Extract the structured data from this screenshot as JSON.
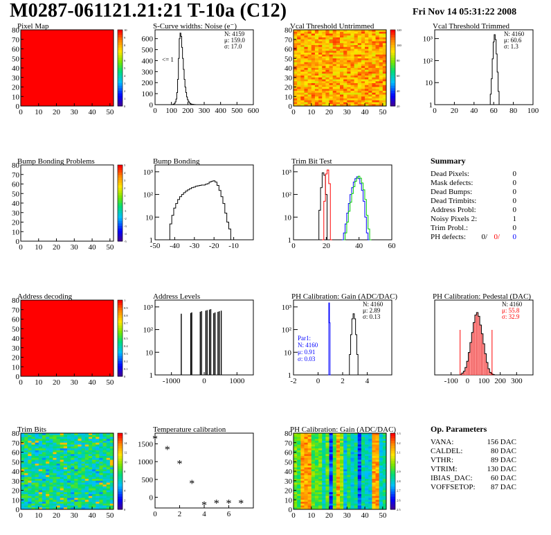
{
  "title": "M0287-061121.21:21 T-10a (C12)",
  "date": "Fri Nov 14 05:31:22 2008",
  "chart_data": [
    {
      "type": "heatmap",
      "title": "Pixel Map",
      "x_ticks": [
        "0",
        "10",
        "20",
        "30",
        "40",
        "50"
      ],
      "y_ticks": [
        "0",
        "10",
        "20",
        "30",
        "40",
        "50",
        "60",
        "70",
        "80"
      ],
      "xlim": [
        0,
        52
      ],
      "ylim": [
        0,
        80
      ],
      "fill": "uniform-max",
      "palette_labels": [
        "10",
        "9",
        "8",
        "7",
        "6",
        "5",
        "4",
        "3",
        "2",
        "1",
        "0"
      ]
    },
    {
      "type": "histogram",
      "title": "S-Curve widths: Noise (e⁻)",
      "xlim": [
        0,
        600
      ],
      "ylim": [
        0,
        680
      ],
      "x_ticks": [
        "0",
        "100",
        "200",
        "300",
        "400",
        "500",
        "600"
      ],
      "y_ticks": [
        "0",
        "100",
        "200",
        "300",
        "400",
        "500",
        "600"
      ],
      "log_y": false,
      "stats": [
        "N: 4159",
        "μ: 159.0",
        "σ: 17.0"
      ],
      "annotation": "<= 1",
      "x": [
        110,
        115,
        120,
        125,
        130,
        135,
        140,
        145,
        150,
        155,
        160,
        165,
        170,
        175,
        180,
        185,
        190,
        195,
        200,
        205,
        210,
        215,
        220,
        225,
        230,
        235,
        240,
        245,
        250
      ],
      "y": [
        2,
        5,
        12,
        25,
        50,
        110,
        230,
        420,
        600,
        650,
        620,
        520,
        420,
        320,
        230,
        160,
        110,
        70,
        45,
        30,
        18,
        10,
        6,
        4,
        3,
        2,
        1,
        1,
        0
      ]
    },
    {
      "type": "heatmap",
      "title": "Vcal Threshold Untrimmed",
      "x_ticks": [
        "0",
        "10",
        "20",
        "30",
        "40",
        "50"
      ],
      "y_ticks": [
        "0",
        "10",
        "20",
        "30",
        "40",
        "50",
        "60",
        "70",
        "80"
      ],
      "xlim": [
        0,
        52
      ],
      "ylim": [
        0,
        80
      ],
      "fill": "noisy-orange",
      "palette_labels": [
        "120",
        "100",
        "80",
        "60",
        "40",
        "20"
      ]
    },
    {
      "type": "histogram",
      "title": "Vcal Threshold Trimmed",
      "xlim": [
        0,
        100
      ],
      "ylim": [
        1,
        2500
      ],
      "log_y": true,
      "x_ticks": [
        "0",
        "20",
        "40",
        "60",
        "80",
        "100"
      ],
      "y_ticks": [
        "1",
        "10",
        "10²",
        "10³"
      ],
      "stats": [
        "N: 4160",
        "μ: 60.6",
        "σ: 1.3"
      ],
      "x": [
        56,
        57,
        58,
        59,
        60,
        61,
        62,
        63,
        64,
        65,
        66
      ],
      "y": [
        1,
        3,
        15,
        120,
        700,
        1500,
        900,
        200,
        30,
        4,
        1
      ]
    },
    {
      "type": "heatmap",
      "title": "Bump Bonding Problems",
      "x_ticks": [
        "0",
        "10",
        "20",
        "30",
        "40",
        "50"
      ],
      "y_ticks": [
        "0",
        "10",
        "20",
        "30",
        "40",
        "50",
        "60",
        "70",
        "80"
      ],
      "xlim": [
        0,
        52
      ],
      "ylim": [
        0,
        80
      ],
      "fill": "empty",
      "palette_labels": [
        "5",
        "4",
        "3",
        "2",
        "1",
        "0",
        "-1",
        "-2",
        "-3",
        "-4",
        "-5"
      ]
    },
    {
      "type": "histogram",
      "title": "Bump Bonding",
      "xlim": [
        -50,
        0
      ],
      "ylim": [
        1,
        2000
      ],
      "log_y": true,
      "x_ticks": [
        "-50",
        "-40",
        "-30",
        "-20",
        "-10"
      ],
      "y_ticks": [
        "1",
        "10",
        "10²",
        "10³"
      ],
      "x": [
        -43,
        -42,
        -41,
        -40,
        -39,
        -38,
        -37,
        -36,
        -35,
        -34,
        -33,
        -32,
        -31,
        -30,
        -29,
        -28,
        -27,
        -26,
        -25,
        -24,
        -23,
        -22,
        -21,
        -20,
        -19,
        -18,
        -17,
        -16,
        -15,
        -14,
        -13,
        -12,
        -11,
        -10,
        -9
      ],
      "y": [
        1,
        5,
        12,
        25,
        40,
        60,
        80,
        100,
        120,
        140,
        160,
        180,
        200,
        210,
        230,
        240,
        250,
        260,
        260,
        280,
        300,
        350,
        380,
        400,
        350,
        250,
        150,
        80,
        40,
        15,
        6,
        3,
        1,
        1,
        0
      ]
    },
    {
      "type": "histogram",
      "title": "Trim Bit Test",
      "xlim": [
        0,
        60
      ],
      "ylim": [
        1,
        2000
      ],
      "log_y": true,
      "x_ticks": [
        "0",
        "20",
        "40",
        "60"
      ],
      "y_ticks": [
        "1",
        "10",
        "10²",
        "10³"
      ],
      "series": [
        {
          "color": "#000000",
          "x": [
            15,
            16,
            17,
            18,
            19,
            20,
            21
          ],
          "y": [
            1,
            20,
            200,
            900,
            700,
            100,
            1
          ]
        },
        {
          "color": "#ff0000",
          "x": [
            18,
            19,
            20,
            21,
            22,
            23
          ],
          "y": [
            1,
            50,
            800,
            1200,
            300,
            1
          ]
        },
        {
          "color": "#0000ff",
          "x": [
            30,
            31,
            32,
            33,
            34,
            35,
            36,
            37,
            38,
            39,
            40,
            41,
            42,
            43,
            44,
            45,
            46
          ],
          "y": [
            1,
            2,
            5,
            15,
            40,
            100,
            200,
            350,
            500,
            600,
            500,
            300,
            150,
            50,
            10,
            2,
            1
          ]
        },
        {
          "color": "#00cc00",
          "x": [
            31,
            32,
            33,
            34,
            35,
            36,
            37,
            38,
            39,
            40,
            41,
            42,
            43,
            44,
            45,
            46,
            47
          ],
          "y": [
            1,
            2,
            6,
            18,
            45,
            110,
            220,
            380,
            520,
            640,
            520,
            320,
            160,
            60,
            12,
            3,
            1
          ]
        }
      ]
    },
    {
      "type": "table",
      "title": "Summary",
      "rows": [
        [
          "Dead Pixels:",
          "0"
        ],
        [
          "Mask defects:",
          "0"
        ],
        [
          "Dead Bumps:",
          "0"
        ],
        [
          "Dead Trimbits:",
          "0"
        ],
        [
          "Address Probl:",
          "0"
        ],
        [
          "Noisy Pixels 2:",
          "1"
        ],
        [
          "Trim Probl.:",
          "0"
        ]
      ],
      "ph_defects": {
        "label": "PH defects:",
        "values": [
          "0/",
          "0/",
          "0"
        ],
        "colors": [
          "#000000",
          "#ff0000",
          "#0000ff"
        ]
      }
    },
    {
      "type": "heatmap",
      "title": "Address decoding",
      "x_ticks": [
        "0",
        "10",
        "20",
        "30",
        "40",
        "50"
      ],
      "y_ticks": [
        "0",
        "10",
        "20",
        "30",
        "40",
        "50",
        "60",
        "70",
        "80"
      ],
      "xlim": [
        0,
        52
      ],
      "ylim": [
        0,
        80
      ],
      "fill": "uniform-max",
      "palette_labels": [
        "1",
        "0.9",
        "0.8",
        "0.7",
        "0.6",
        "0.5",
        "0.4",
        "0.3",
        "0.2",
        "0.1",
        "0"
      ]
    },
    {
      "type": "histogram",
      "title": "Address Levels",
      "xlim": [
        -1500,
        1500
      ],
      "ylim": [
        1,
        2000
      ],
      "log_y": true,
      "x_ticks": [
        "-1000",
        "0",
        "1000"
      ],
      "y_ticks": [
        "1",
        "10",
        "10²",
        "10³"
      ],
      "spikes": [
        -700,
        -410,
        -380,
        -120,
        -80,
        50,
        90,
        160,
        200,
        290,
        330,
        420,
        460,
        520
      ]
    },
    {
      "type": "histogram",
      "title": "PH Calibration: Gain (ADC/DAC)",
      "xlim": [
        -2,
        6
      ],
      "ylim": [
        1,
        2000
      ],
      "log_y": true,
      "x_ticks": [
        "-2",
        "0",
        "2",
        "4"
      ],
      "y_ticks": [
        "1",
        "10",
        "10²",
        "10³"
      ],
      "stats": [
        "N: 4160",
        "μ: 2.89",
        "σ: 0.13"
      ],
      "par1": [
        "Par1:",
        "N: 4160",
        "μ: 0.91",
        "σ: 0.03"
      ],
      "series": [
        {
          "color": "#000000",
          "x": [
            2.5,
            2.6,
            2.7,
            2.8,
            2.9,
            3.0,
            3.1,
            3.2,
            3.3
          ],
          "y": [
            1,
            8,
            60,
            300,
            500,
            300,
            60,
            8,
            1
          ]
        },
        {
          "color": "#0000ff",
          "x": [
            0.85,
            0.9,
            0.95,
            1.0
          ],
          "y": [
            1,
            1500,
            200,
            1
          ]
        }
      ]
    },
    {
      "type": "histogram",
      "title": "PH Calibration: Pedestal (DAC)",
      "xlim": [
        -200,
        400
      ],
      "ylim": [
        0,
        600
      ],
      "log_y": false,
      "x_ticks": [
        "-100",
        "0",
        "100",
        "200",
        "300"
      ],
      "stats": [
        "N: 4160",
        "μ: 55.8",
        "σ: 32.9"
      ],
      "stats_colors": [
        "#000000",
        "#ff0000",
        "#ff0000"
      ],
      "x": [
        -40,
        -30,
        -20,
        -10,
        0,
        10,
        20,
        30,
        40,
        50,
        60,
        70,
        80,
        90,
        100,
        110,
        120,
        130,
        140,
        150,
        160
      ],
      "y": [
        5,
        15,
        30,
        60,
        110,
        180,
        260,
        340,
        420,
        480,
        500,
        470,
        400,
        330,
        250,
        170,
        100,
        50,
        20,
        8,
        3
      ]
    },
    {
      "type": "heatmap",
      "title": "Trim Bits",
      "x_ticks": [
        "0",
        "10",
        "20",
        "30",
        "40",
        "50"
      ],
      "y_ticks": [
        "0",
        "10",
        "20",
        "30",
        "40",
        "50",
        "60",
        "70",
        "80"
      ],
      "xlim": [
        0,
        52
      ],
      "ylim": [
        0,
        80
      ],
      "fill": "noisy-green",
      "palette_labels": [
        "16",
        "14",
        "12",
        "10",
        "8",
        "6",
        "4",
        "2",
        "0"
      ]
    },
    {
      "type": "scatter",
      "title": "Temperature calibration",
      "xlim": [
        0,
        8
      ],
      "ylim": [
        -300,
        1800
      ],
      "x_ticks": [
        "0",
        "2",
        "4",
        "6"
      ],
      "y_ticks": [
        "0",
        "500",
        "1000",
        "1500"
      ],
      "x": [
        0,
        1,
        2,
        3,
        4,
        5,
        6,
        7
      ],
      "y": [
        1650,
        1350,
        950,
        400,
        -200,
        -150,
        -150,
        -150
      ]
    },
    {
      "type": "heatmap",
      "title": "PH Calibration: Gain (ADC/DAC)",
      "x_ticks": [
        "0",
        "10",
        "20",
        "30",
        "40",
        "50"
      ],
      "y_ticks": [
        "0",
        "10",
        "20",
        "30",
        "40",
        "50",
        "60",
        "70",
        "80"
      ],
      "xlim": [
        0,
        52
      ],
      "ylim": [
        0,
        80
      ],
      "fill": "noisy-columns",
      "palette_labels": [
        "3.3",
        "3.2",
        "3.1",
        "3",
        "2.9",
        "2.8",
        "2.7",
        "2.6",
        "2.5"
      ]
    },
    {
      "type": "table",
      "title": "Op. Parameters",
      "rows": [
        [
          "VANA:",
          "156 DAC"
        ],
        [
          "CALDEL:",
          "80 DAC"
        ],
        [
          "VTHR:",
          "89 DAC"
        ],
        [
          "VTRIM:",
          "130 DAC"
        ],
        [
          "IBIAS_DAC:",
          "60 DAC"
        ],
        [
          "VOFFSETOP:",
          "87 DAC"
        ]
      ]
    }
  ]
}
